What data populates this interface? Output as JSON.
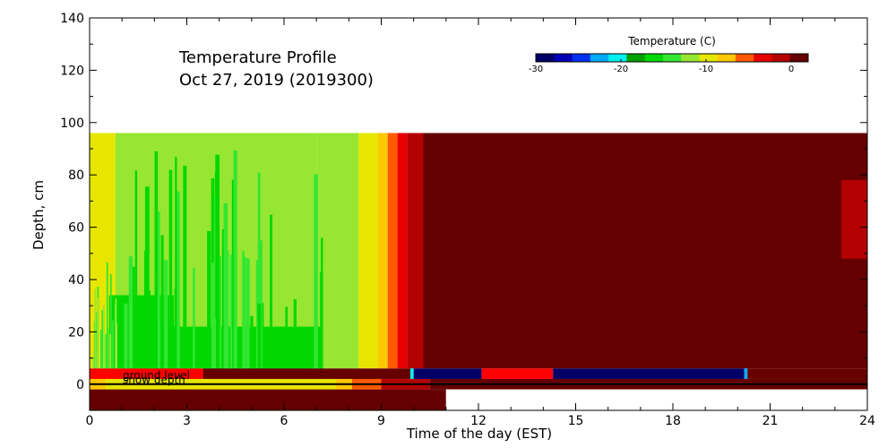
{
  "chart_data": {
    "type": "heatmap",
    "title_line1": "Temperature Profile",
    "title_line2": "Oct 27, 2019 (2019300)",
    "xlabel": "Time of the day (EST)",
    "ylabel": "Depth, cm",
    "xlim": [
      0,
      24
    ],
    "ylim": [
      -10,
      140
    ],
    "x_ticks": [
      0,
      3,
      6,
      9,
      12,
      15,
      18,
      21,
      24
    ],
    "y_ticks": [
      0,
      20,
      40,
      60,
      80,
      100,
      120,
      140
    ],
    "colorbar": {
      "title": "Temperature (C)",
      "range": [
        -30,
        2
      ],
      "tick_values": [
        -30,
        -20,
        -10,
        0
      ],
      "tick_labels": [
        "-30",
        "-20",
        "-10",
        "0"
      ],
      "colors": [
        "#000066",
        "#0000b4",
        "#0032f0",
        "#00aaff",
        "#00f0f0",
        "#00a000",
        "#00d800",
        "#32e632",
        "#96e632",
        "#e6e600",
        "#ffc800",
        "#ff5a00",
        "#e60000",
        "#b40000",
        "#660000"
      ]
    },
    "annotations": [
      {
        "text": "ground level",
        "depth": 5
      },
      {
        "text": "snow depth",
        "depth": 1.5
      }
    ],
    "soil_profile": {
      "depth_range": [
        6,
        96
      ],
      "description": "Temperature by depth (rows) and time (columns)",
      "bands": [
        {
          "time": [
            0.0,
            0.8
          ],
          "color": "#e6e600"
        },
        {
          "time": [
            0.8,
            2.5
          ],
          "color": "#96e632"
        },
        {
          "time": [
            2.5,
            7.0
          ],
          "color": "#96e632"
        },
        {
          "time": [
            7.0,
            8.3
          ],
          "color": "#96e632"
        },
        {
          "time": [
            8.3,
            8.9
          ],
          "color": "#e6e600"
        },
        {
          "time": [
            8.9,
            9.2
          ],
          "color": "#ffc800"
        },
        {
          "time": [
            9.2,
            9.5
          ],
          "color": "#ff5a00"
        },
        {
          "time": [
            9.5,
            9.8
          ],
          "color": "#e60000"
        },
        {
          "time": [
            9.8,
            10.3
          ],
          "color": "#b40000"
        },
        {
          "time": [
            10.3,
            24.0
          ],
          "color": "#660000"
        }
      ],
      "deep_green_patches": [
        {
          "time": [
            0.6,
            2.6
          ],
          "depth": [
            6,
            34
          ]
        },
        {
          "time": [
            2.0,
            7.2
          ],
          "depth": [
            6,
            22
          ]
        },
        {
          "time": [
            1.5,
            3.2
          ],
          "depth": [
            6,
            12
          ]
        }
      ],
      "right_edge": {
        "time": [
          23.2,
          24.0
        ],
        "depth": [
          48,
          78
        ],
        "color": "#b40000"
      }
    },
    "surface_row": {
      "depth": [
        2,
        6
      ],
      "segments": [
        {
          "time": [
            0.0,
            3.5
          ],
          "color": "#ff0000"
        },
        {
          "time": [
            3.5,
            9.9
          ],
          "color": "#660000"
        },
        {
          "time": [
            9.9,
            10.0
          ],
          "color": "#00f0f0"
        },
        {
          "time": [
            10.0,
            12.1
          ],
          "color": "#000066"
        },
        {
          "time": [
            12.1,
            14.3
          ],
          "color": "#ff0000"
        },
        {
          "time": [
            14.3,
            20.2
          ],
          "color": "#000066"
        },
        {
          "time": [
            20.2,
            20.3
          ],
          "color": "#00aaff"
        },
        {
          "time": [
            20.3,
            24.0
          ],
          "color": "#660000"
        }
      ]
    },
    "snow_rows": [
      {
        "depth": [
          -2,
          2
        ],
        "segments": [
          {
            "time": [
              0.0,
              0.5
            ],
            "color": "#ffc800"
          },
          {
            "time": [
              0.5,
              7.6
            ],
            "color": "#e6e600"
          },
          {
            "time": [
              7.6,
              8.1
            ],
            "color": "#ffc800"
          },
          {
            "time": [
              8.1,
              9.0
            ],
            "color": "#ff5a00"
          },
          {
            "time": [
              9.0,
              10.5
            ],
            "color": "#b40000"
          },
          {
            "time": [
              10.5,
              24.0
            ],
            "color": "#660000"
          }
        ]
      },
      {
        "depth": [
          -10,
          -2
        ],
        "segments": [
          {
            "time": [
              0.0,
              11.0
            ],
            "color": "#660000"
          },
          {
            "time": [
              11.0,
              24.0
            ],
            "color": "#ffffff"
          }
        ]
      }
    ]
  }
}
